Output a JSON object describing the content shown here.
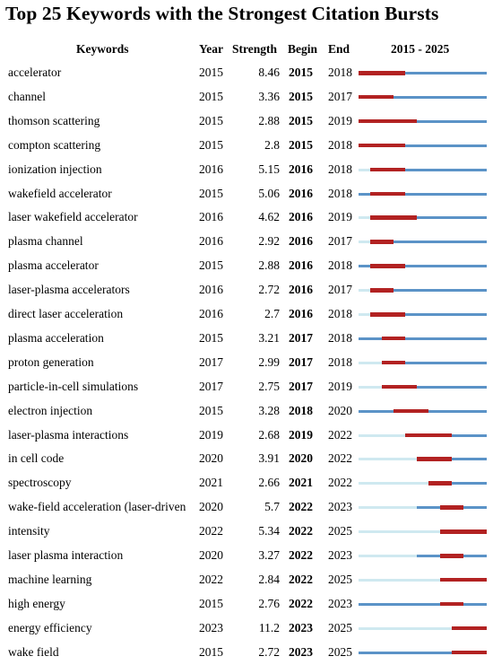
{
  "chart_data": {
    "type": "table",
    "title": "Top 25 Keywords with the Strongest Citation Bursts",
    "columns": [
      "Keywords",
      "Year",
      "Strength",
      "Begin",
      "End",
      "2015 - 2025"
    ],
    "timeline_range": [
      2015,
      2025
    ],
    "colors": {
      "burst": "#b22222",
      "active": "#5b93c7",
      "inactive": "#cfe9f0"
    },
    "rows": [
      {
        "keyword": "accelerator",
        "year": "2015",
        "strength": "8.46",
        "begin": "2015",
        "end": "2018"
      },
      {
        "keyword": "channel",
        "year": "2015",
        "strength": "3.36",
        "begin": "2015",
        "end": "2017"
      },
      {
        "keyword": "thomson scattering",
        "year": "2015",
        "strength": "2.88",
        "begin": "2015",
        "end": "2019"
      },
      {
        "keyword": "compton scattering",
        "year": "2015",
        "strength": "2.8",
        "begin": "2015",
        "end": "2018"
      },
      {
        "keyword": "ionization injection",
        "year": "2016",
        "strength": "5.15",
        "begin": "2016",
        "end": "2018"
      },
      {
        "keyword": "wakefield accelerator",
        "year": "2015",
        "strength": "5.06",
        "begin": "2016",
        "end": "2018"
      },
      {
        "keyword": "laser wakefield accelerator",
        "year": "2016",
        "strength": "4.62",
        "begin": "2016",
        "end": "2019"
      },
      {
        "keyword": "plasma channel",
        "year": "2016",
        "strength": "2.92",
        "begin": "2016",
        "end": "2017"
      },
      {
        "keyword": "plasma accelerator",
        "year": "2015",
        "strength": "2.88",
        "begin": "2016",
        "end": "2018"
      },
      {
        "keyword": "laser-plasma accelerators",
        "year": "2016",
        "strength": "2.72",
        "begin": "2016",
        "end": "2017"
      },
      {
        "keyword": "direct laser acceleration",
        "year": "2016",
        "strength": "2.7",
        "begin": "2016",
        "end": "2018"
      },
      {
        "keyword": "plasma acceleration",
        "year": "2015",
        "strength": "3.21",
        "begin": "2017",
        "end": "2018"
      },
      {
        "keyword": "proton generation",
        "year": "2017",
        "strength": "2.99",
        "begin": "2017",
        "end": "2018"
      },
      {
        "keyword": "particle-in-cell simulations",
        "year": "2017",
        "strength": "2.75",
        "begin": "2017",
        "end": "2019"
      },
      {
        "keyword": "electron injection",
        "year": "2015",
        "strength": "3.28",
        "begin": "2018",
        "end": "2020"
      },
      {
        "keyword": "laser-plasma interactions",
        "year": "2019",
        "strength": "2.68",
        "begin": "2019",
        "end": "2022"
      },
      {
        "keyword": "in cell code",
        "year": "2020",
        "strength": "3.91",
        "begin": "2020",
        "end": "2022"
      },
      {
        "keyword": "spectroscopy",
        "year": "2021",
        "strength": "2.66",
        "begin": "2021",
        "end": "2022"
      },
      {
        "keyword": "wake-field acceleration (laser-driven",
        "year": "2020",
        "strength": "5.7",
        "begin": "2022",
        "end": "2023"
      },
      {
        "keyword": "intensity",
        "year": "2022",
        "strength": "5.34",
        "begin": "2022",
        "end": "2025"
      },
      {
        "keyword": "laser plasma interaction",
        "year": "2020",
        "strength": "3.27",
        "begin": "2022",
        "end": "2023"
      },
      {
        "keyword": "machine learning",
        "year": "2022",
        "strength": "2.84",
        "begin": "2022",
        "end": "2025"
      },
      {
        "keyword": "high energy",
        "year": "2015",
        "strength": "2.76",
        "begin": "2022",
        "end": "2023"
      },
      {
        "keyword": "energy efficiency",
        "year": "2023",
        "strength": "11.2",
        "begin": "2023",
        "end": "2025"
      },
      {
        "keyword": "wake field",
        "year": "2015",
        "strength": "2.72",
        "begin": "2023",
        "end": "2025"
      }
    ]
  }
}
